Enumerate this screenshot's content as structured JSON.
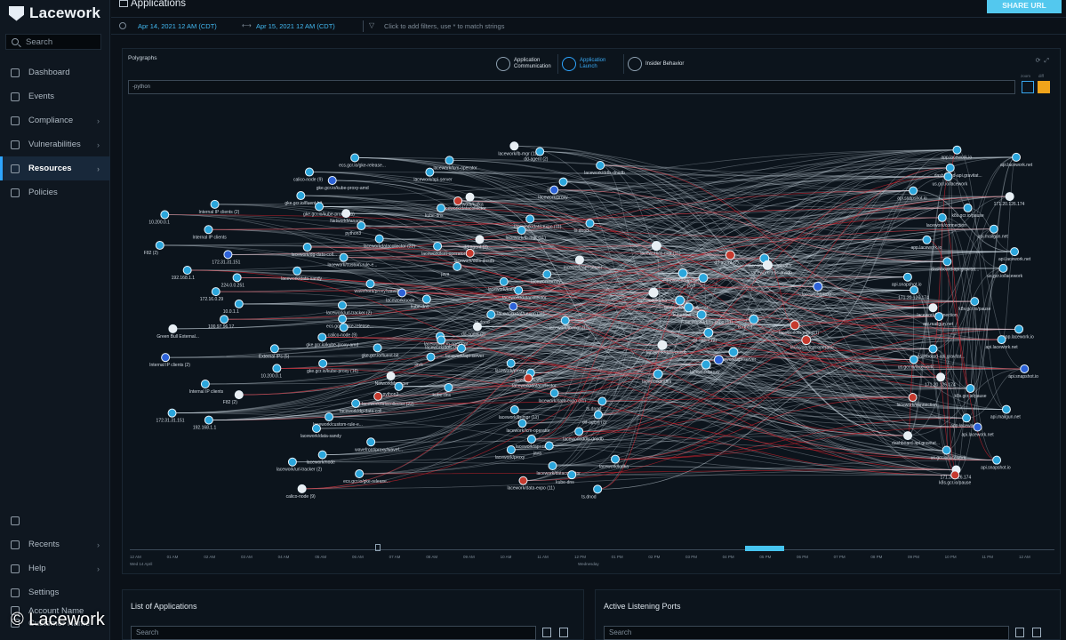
{
  "brand": {
    "name": "Lacework"
  },
  "watermark": "© Lacework",
  "sidebar": {
    "search_label": "Search",
    "items": [
      {
        "label": "Dashboard",
        "icon": "dashboard-icon"
      },
      {
        "label": "Events",
        "icon": "events-icon"
      },
      {
        "label": "Compliance",
        "icon": "compliance-icon"
      },
      {
        "label": "Vulnerabilities",
        "icon": "shield-icon"
      },
      {
        "label": "Resources",
        "icon": "resources-icon"
      },
      {
        "label": "Policies",
        "icon": "policies-icon"
      }
    ],
    "bottom_items": [
      {
        "label": "",
        "icon": "keyboard-icon"
      },
      {
        "label": "Recents",
        "icon": "clock-icon"
      },
      {
        "label": "Help",
        "icon": "help-icon"
      },
      {
        "label": "Settings",
        "icon": "gear-icon"
      },
      {
        "label": "Account Name",
        "icon": "account-icon"
      },
      {
        "label": "Customer Name",
        "icon": "customer-icon"
      }
    ],
    "active": "Resources"
  },
  "header": {
    "title": "Applications",
    "share_label": "SHARE URL"
  },
  "filters": {
    "start": "Apr 14, 2021 12 AM (CDT)",
    "end": "Apr 15, 2021 12 AM (CDT)",
    "hint": "Click to add filters, use * to match strings"
  },
  "polygraph": {
    "title": "Polygraphs",
    "modes": [
      {
        "label": "Application Communication",
        "active": false
      },
      {
        "label": "Application Launch",
        "active": true
      },
      {
        "label": "Insider Behavior",
        "active": false
      }
    ],
    "query": "-python",
    "btn1_label": "zoom",
    "btn2_label": "diff",
    "accent": "#2ea5ff",
    "edge_color": "#d5e1ea",
    "highlight_edge_color": "#c0202c"
  },
  "graph": {
    "left_labels": [
      "Internal IP clients (2)",
      "10.200.0.1",
      "Internal IP clients",
      "F82 (2)",
      "172.31.31.151",
      "192.168.1.1",
      "224.0.0.251",
      "172.16.0.29",
      "10.0.1.1",
      "100.97.96.17",
      "Green Bull External...",
      "External IPs (5)"
    ],
    "mid_labels": [
      "ecs.gcr.io/gke-release...",
      "calico-node (9)",
      "gke.gcr.io/kube-proxy-amd",
      "gke.gcr.io/fluent-bit",
      "gke.gcr.io/kube-proxy (16)",
      "NetworkManager",
      "python3",
      "laceworkdatacollector (22)",
      "lacework/dg-data-coll...",
      "lacework/custom-rule-e...",
      "lacework/data-sandy",
      "wavefront/proxy/wavef...",
      "lacework/node",
      "lacework/url-tracker (2)"
    ],
    "center_labels": [
      "lacework/lb-mgr (11)",
      "dd-agent (2)",
      "lacework/lcm-operator",
      "lacework/ddls-dnsdb",
      "lacework/api-server",
      "java",
      "lacework/proxy",
      "lacework/kafka",
      "lacework/datacollector",
      "kube-dns",
      "lacework/data-expo (11)",
      "ts.dnod"
    ],
    "right_labels": [
      "app.lacework.io",
      "api.lacework.net",
      "dashboard-api.gravitat...",
      "us.gcr.io/lacework",
      "api.snapshot.io",
      "171.20.126.174",
      "k8s.gcr.io/pause",
      "lacework/connection",
      "api.mailgun.net"
    ]
  },
  "timeline": {
    "ticks": [
      "12 AM",
      "01 AM",
      "02 AM",
      "03 AM",
      "04 AM",
      "05 AM",
      "06 AM",
      "07 AM",
      "08 AM",
      "09 AM",
      "10 AM",
      "11 AM",
      "12 PM",
      "01 PM",
      "02 PM",
      "03 PM",
      "04 PM",
      "05 PM",
      "06 PM",
      "07 PM",
      "08 PM",
      "09 PM",
      "10 PM",
      "11 PM",
      "12 AM"
    ],
    "start_caption": "Wed 14 April",
    "mid_caption": "Wednesday"
  },
  "cards": [
    {
      "title": "List of Applications",
      "search_placeholder": "Search"
    },
    {
      "title": "Active Listening Ports",
      "search_placeholder": "Search"
    }
  ]
}
